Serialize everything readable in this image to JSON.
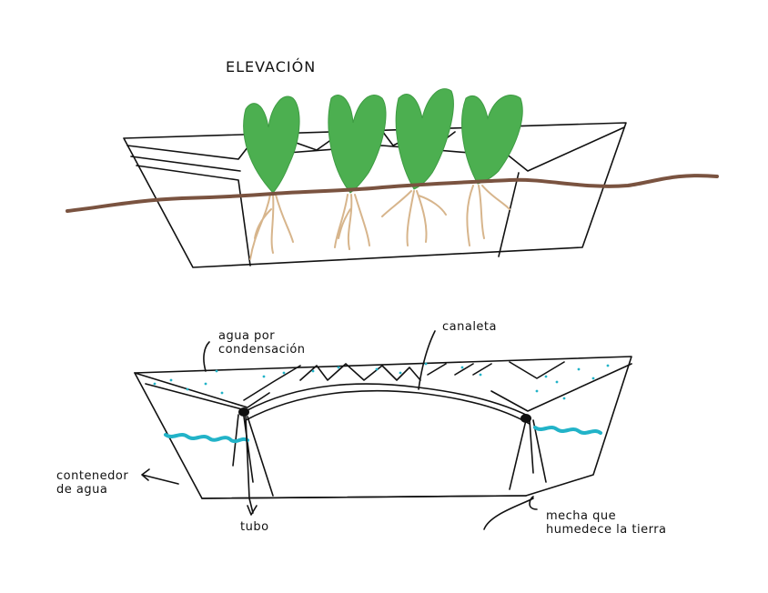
{
  "labels": {
    "title": "ELEVACIÓN",
    "condensation": "agua por\ncondensación",
    "gutter": "canaleta",
    "container": "contenedor\nde agua",
    "tube": "tubo",
    "wick": "mecha que\nhumedece la tierra"
  },
  "colors": {
    "leaf": "#4caf50",
    "soil": "#7a5340",
    "root": "#d7b58c",
    "water": "#22b3c8",
    "ink": "#111111"
  }
}
